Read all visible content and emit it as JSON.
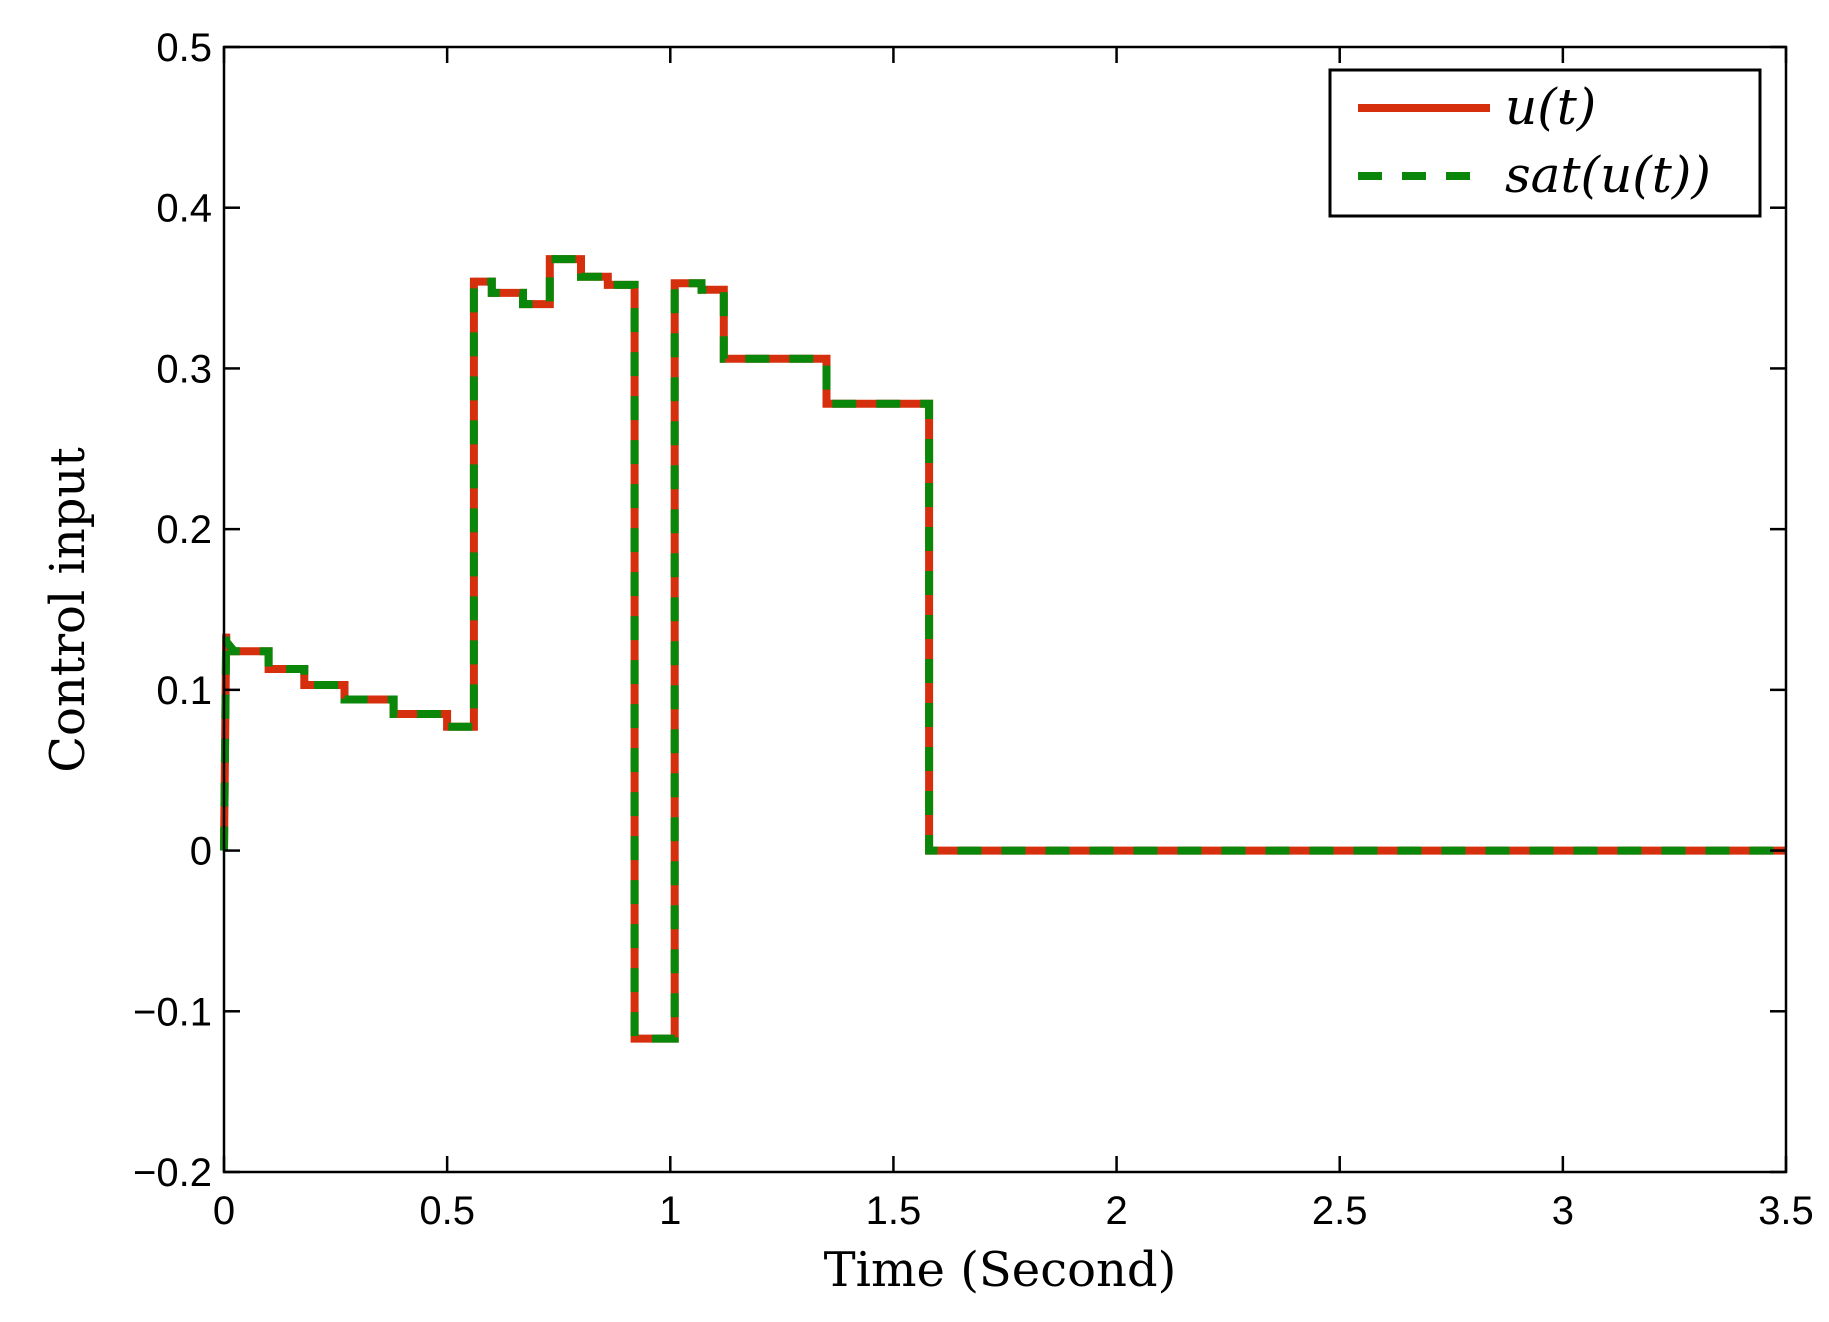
{
  "chart_data": {
    "type": "line",
    "title": "",
    "xlabel": "Time (Second)",
    "ylabel": "Control input",
    "xlim": [
      0,
      3.5
    ],
    "ylim": [
      -0.2,
      0.5
    ],
    "xticks": [
      0,
      0.5,
      1,
      1.5,
      2,
      2.5,
      3,
      3.5
    ],
    "xtick_labels": [
      "0",
      "0.5",
      "1",
      "1.5",
      "2",
      "2.5",
      "3",
      "3.5"
    ],
    "yticks": [
      -0.2,
      -0.1,
      0,
      0.1,
      0.2,
      0.3,
      0.4,
      0.5
    ],
    "ytick_labels": [
      "−0.2",
      "−0.1",
      "0",
      "0.1",
      "0.2",
      "0.3",
      "0.4",
      "0.5"
    ],
    "grid": false,
    "legend_position": "top-right",
    "series": [
      {
        "name": "u(t)",
        "style": "solid",
        "color": "#d62f0e",
        "x": [
          0,
          0.005,
          0.005,
          0.02,
          0.02,
          0.1,
          0.1,
          0.18,
          0.18,
          0.27,
          0.27,
          0.38,
          0.38,
          0.5,
          0.5,
          0.56,
          0.56,
          0.6,
          0.6,
          0.67,
          0.67,
          0.73,
          0.73,
          0.8,
          0.8,
          0.86,
          0.86,
          0.92,
          0.92,
          1.01,
          1.01,
          1.07,
          1.07,
          1.12,
          1.12,
          1.35,
          1.35,
          1.58,
          1.58,
          3.5
        ],
        "y": [
          0,
          0.135,
          0.13,
          0.125,
          0.124,
          0.124,
          0.113,
          0.113,
          0.103,
          0.103,
          0.094,
          0.094,
          0.085,
          0.085,
          0.077,
          0.077,
          0.354,
          0.354,
          0.347,
          0.347,
          0.34,
          0.34,
          0.368,
          0.368,
          0.357,
          0.357,
          0.352,
          0.352,
          -0.117,
          -0.117,
          0.353,
          0.353,
          0.349,
          0.349,
          0.306,
          0.306,
          0.278,
          0.278,
          0,
          0
        ]
      },
      {
        "name": "sat(u(t))",
        "style": "dashed",
        "color": "#0a870a",
        "x": [
          0,
          0.005,
          0.005,
          0.02,
          0.02,
          0.1,
          0.1,
          0.18,
          0.18,
          0.27,
          0.27,
          0.38,
          0.38,
          0.5,
          0.5,
          0.56,
          0.56,
          0.6,
          0.6,
          0.67,
          0.67,
          0.73,
          0.73,
          0.8,
          0.8,
          0.86,
          0.86,
          0.92,
          0.92,
          1.01,
          1.01,
          1.07,
          1.07,
          1.12,
          1.12,
          1.35,
          1.35,
          1.58,
          1.58,
          3.5
        ],
        "y": [
          0,
          0.135,
          0.13,
          0.125,
          0.124,
          0.124,
          0.113,
          0.113,
          0.103,
          0.103,
          0.094,
          0.094,
          0.085,
          0.085,
          0.077,
          0.077,
          0.354,
          0.354,
          0.347,
          0.347,
          0.34,
          0.34,
          0.368,
          0.368,
          0.357,
          0.357,
          0.352,
          0.352,
          -0.117,
          -0.117,
          0.353,
          0.353,
          0.349,
          0.349,
          0.306,
          0.306,
          0.278,
          0.278,
          0,
          0
        ]
      }
    ]
  }
}
